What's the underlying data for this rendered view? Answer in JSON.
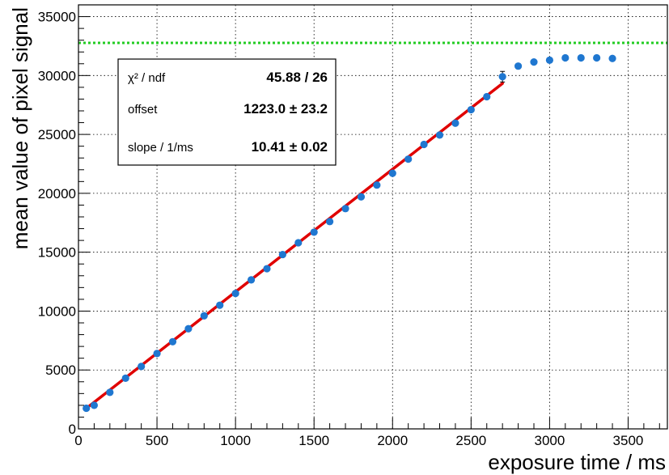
{
  "chart_data": {
    "type": "scatter",
    "xlabel": "exposure time / ms",
    "ylabel": "mean value of pixel signal",
    "xlim": [
      0,
      3750
    ],
    "ylim": [
      0,
      36000
    ],
    "xticks": [
      0,
      500,
      1000,
      1500,
      2000,
      2500,
      3000,
      3500
    ],
    "yticks": [
      0,
      5000,
      10000,
      15000,
      20000,
      25000,
      30000,
      35000
    ],
    "xtick_labels": [
      "0",
      "500",
      "1000",
      "1500",
      "2000",
      "2500",
      "3000",
      "3500"
    ],
    "ytick_labels": [
      "0",
      "5000",
      "10000",
      "15000",
      "20000",
      "25000",
      "30000",
      "35000"
    ],
    "grid": true,
    "series": [
      {
        "values_x": [
          50,
          100,
          200,
          300,
          400,
          500,
          600,
          700,
          800,
          900,
          1000,
          1100,
          1200,
          1300,
          1400,
          1500,
          1600,
          1700,
          1800,
          1900,
          2000,
          2100,
          2200,
          2300,
          2400,
          2500,
          2600,
          2700,
          2800,
          2900,
          3000,
          3100,
          3200,
          3300,
          3400
        ],
        "values_y": [
          1750,
          2000,
          3100,
          4300,
          5300,
          6400,
          7400,
          8500,
          9600,
          10500,
          11500,
          12650,
          13600,
          14800,
          15800,
          16700,
          17600,
          18700,
          19700,
          20700,
          21700,
          22900,
          24150,
          24950,
          25950,
          27100,
          28200,
          29900,
          30800,
          31150,
          31300,
          31500,
          31500,
          31500,
          31450
        ],
        "error_y": [
          0,
          0,
          0,
          0,
          0,
          0,
          0,
          0,
          0,
          0,
          0,
          0,
          0,
          0,
          0,
          0,
          0,
          0,
          0,
          0,
          0,
          0,
          0,
          0,
          0,
          0,
          0,
          450,
          0,
          0,
          0,
          0,
          0,
          0,
          0
        ],
        "color": "#1f77d0"
      }
    ],
    "fit_line": {
      "x_start": 50,
      "x_end": 2700,
      "offset": 1223.0,
      "slope": 10.41,
      "color": "#e00000"
    },
    "threshold_line": {
      "y": 32767,
      "color": "#22cc22",
      "style": "dotted"
    },
    "stats_box": {
      "rows": [
        {
          "label": "χ² / ndf",
          "value": "45.88 / 26"
        },
        {
          "label": "offset",
          "value": "1223.0 ± 23.2"
        },
        {
          "label": "slope / 1/ms",
          "value": "10.41 ± 0.02"
        }
      ]
    }
  }
}
